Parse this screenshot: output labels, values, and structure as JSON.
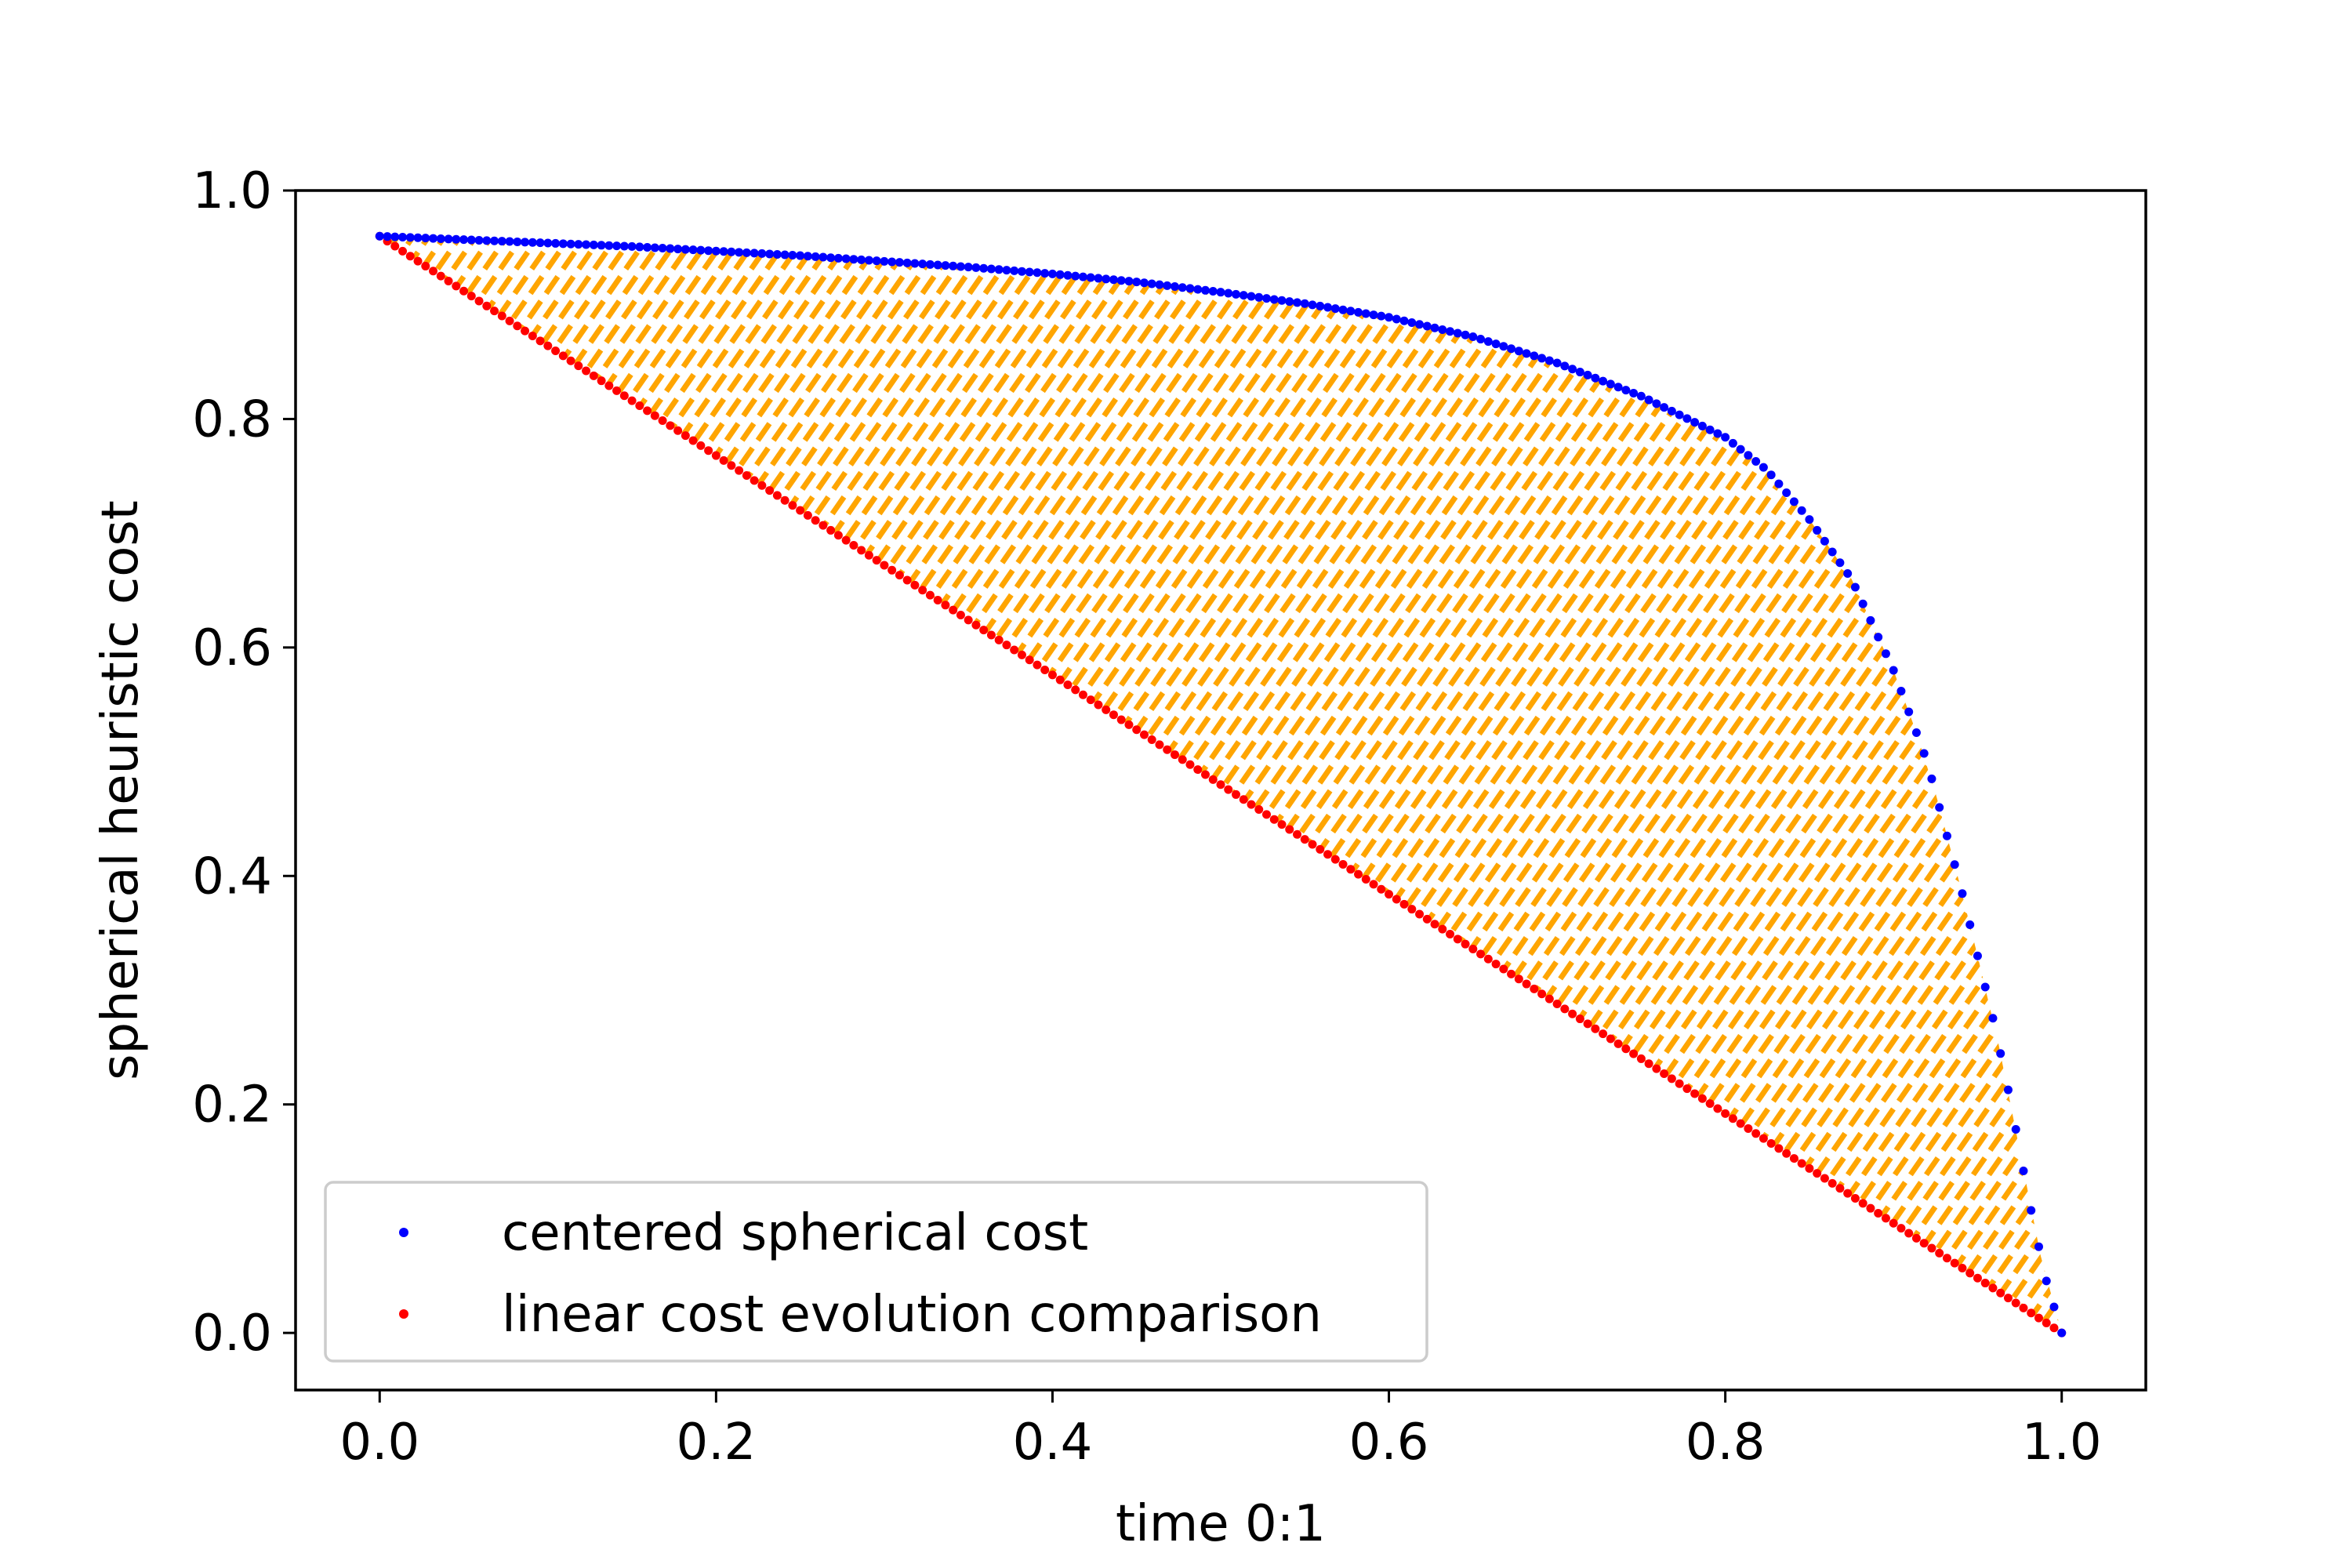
{
  "chart_data": {
    "type": "scatter",
    "title": "",
    "xlabel": "time 0:1",
    "ylabel": "spherical heuristic cost",
    "xlim": [
      -0.05,
      1.05
    ],
    "ylim": [
      -0.05,
      1.0
    ],
    "x_ticks": [
      "0.0",
      "0.2",
      "0.4",
      "0.6",
      "0.8",
      "1.0"
    ],
    "y_ticks": [
      "0.0",
      "0.2",
      "0.4",
      "0.6",
      "0.8",
      "1.0"
    ],
    "grid": false,
    "legend_position": "lower left",
    "fill_between": {
      "color": "#ffa500",
      "style": "vertical dashed hatch"
    },
    "series": [
      {
        "name": "centered spherical cost",
        "color": "#0000ff",
        "x": [
          0.0,
          0.05,
          0.1,
          0.15,
          0.2,
          0.25,
          0.3,
          0.35,
          0.4,
          0.45,
          0.5,
          0.55,
          0.6,
          0.65,
          0.7,
          0.75,
          0.8,
          0.825,
          0.85,
          0.875,
          0.9,
          0.92,
          0.94,
          0.96,
          0.97,
          0.98,
          0.99,
          1.0
        ],
        "values": [
          0.96,
          0.957,
          0.954,
          0.951,
          0.947,
          0.943,
          0.938,
          0.933,
          0.927,
          0.92,
          0.911,
          0.901,
          0.889,
          0.872,
          0.849,
          0.82,
          0.784,
          0.755,
          0.712,
          0.66,
          0.58,
          0.5,
          0.39,
          0.27,
          0.2,
          0.12,
          0.05,
          0.0
        ]
      },
      {
        "name": "linear cost evolution comparison",
        "color": "#ff0000",
        "x": [
          0.0,
          0.1,
          0.2,
          0.3,
          0.4,
          0.5,
          0.6,
          0.7,
          0.8,
          0.9,
          1.0
        ],
        "values": [
          0.96,
          0.864,
          0.768,
          0.672,
          0.576,
          0.48,
          0.384,
          0.288,
          0.192,
          0.096,
          0.0
        ]
      }
    ]
  }
}
